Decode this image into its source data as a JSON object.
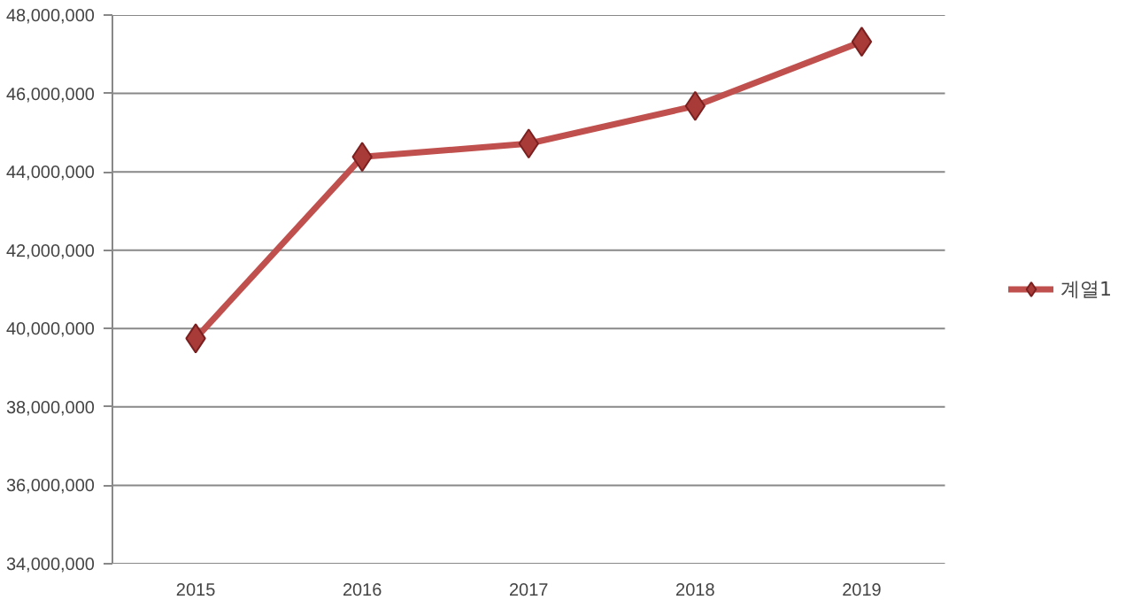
{
  "chart_data": {
    "type": "line",
    "categories": [
      "2015",
      "2016",
      "2017",
      "2018",
      "2019"
    ],
    "series": [
      {
        "name": "계열1",
        "color": "#c0504d",
        "values": [
          39750000,
          44380000,
          44720000,
          45680000,
          47320000
        ]
      }
    ],
    "ylim": [
      34000000,
      48000000
    ],
    "yticks": [
      {
        "value": 34000000,
        "label": "34,000,000"
      },
      {
        "value": 36000000,
        "label": "36,000,000"
      },
      {
        "value": 38000000,
        "label": "38,000,000"
      },
      {
        "value": 40000000,
        "label": "40,000,000"
      },
      {
        "value": 42000000,
        "label": "42,000,000"
      },
      {
        "value": 44000000,
        "label": "44,000,000"
      },
      {
        "value": 46000000,
        "label": "46,000,000"
      },
      {
        "value": 48000000,
        "label": "48,000,000"
      }
    ],
    "grid": "y",
    "legend": "right",
    "marker": "diamond",
    "line_style": "solid"
  }
}
